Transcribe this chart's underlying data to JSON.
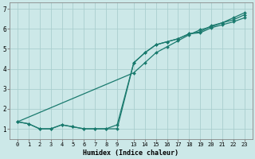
{
  "xlabel": "Humidex (Indice chaleur)",
  "bg_color": "#cce8e8",
  "line_color": "#1a7a6e",
  "grid_color": "#aacece",
  "x_tick_positions": [
    0,
    1,
    2,
    3,
    4,
    5,
    6,
    7,
    8,
    9,
    13,
    14,
    15,
    16,
    17,
    18,
    19,
    20,
    21,
    22,
    23
  ],
  "x_tick_labels": [
    "0",
    "1",
    "2",
    "3",
    "4",
    "5",
    "6",
    "7",
    "8",
    "9",
    "13",
    "14",
    "15",
    "16",
    "17",
    "18",
    "19",
    "20",
    "21",
    "22",
    "23"
  ],
  "ylim": [
    0.5,
    7.3
  ],
  "xlim": [
    -0.5,
    23.8
  ],
  "line1_x": [
    0,
    1,
    2,
    3,
    4,
    5,
    6,
    7,
    8,
    9,
    13,
    14,
    15,
    16,
    17,
    18,
    19,
    20,
    21,
    22,
    23
  ],
  "line1_y": [
    1.35,
    1.25,
    1.0,
    1.0,
    1.2,
    1.1,
    1.0,
    1.0,
    1.0,
    1.0,
    4.3,
    4.8,
    5.2,
    5.35,
    5.5,
    5.75,
    5.8,
    6.05,
    6.2,
    6.35,
    6.55
  ],
  "line2_x": [
    0,
    1,
    2,
    3,
    4,
    5,
    6,
    7,
    8,
    9,
    13,
    14,
    15,
    16,
    17,
    18,
    19,
    20,
    21,
    22,
    23
  ],
  "line2_y": [
    1.35,
    1.25,
    1.0,
    1.0,
    1.2,
    1.1,
    1.0,
    1.0,
    1.0,
    1.2,
    4.3,
    4.8,
    5.2,
    5.35,
    5.5,
    5.75,
    5.85,
    6.15,
    6.3,
    6.45,
    6.7
  ],
  "line3_x": [
    0,
    13,
    14,
    15,
    16,
    17,
    18,
    19,
    20,
    21,
    22,
    23
  ],
  "line3_y": [
    1.35,
    3.8,
    4.3,
    4.8,
    5.1,
    5.4,
    5.7,
    5.95,
    6.1,
    6.3,
    6.55,
    6.8
  ],
  "yticks": [
    1,
    2,
    3,
    4,
    5,
    6,
    7
  ]
}
